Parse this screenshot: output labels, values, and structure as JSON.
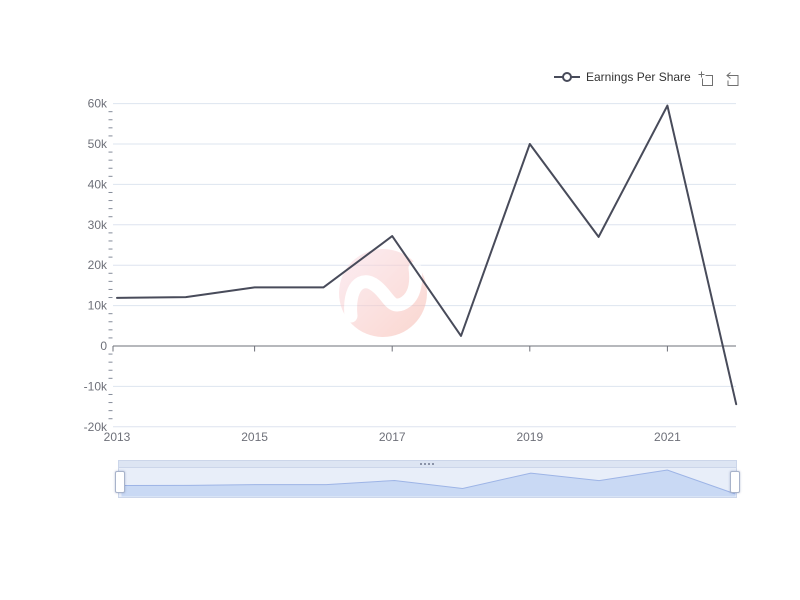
{
  "legend": {
    "label": "Earnings Per Share"
  },
  "icons": {
    "legend_marker": "line-with-circle-marker",
    "toolbox_zoom": "box-zoom-icon",
    "toolbox_restore": "restore-arrow-icon",
    "datazoom_move": "drag-dots"
  },
  "colors": {
    "series_line": "#484b5a",
    "grid_line": "#dde4ef",
    "axis_line": "#6E7079",
    "axis_label": "#6E7079",
    "minor_tick": "#848b99",
    "legend_text": "#333333",
    "toolbox_icon": "#707070",
    "watermark_light": "#fadfe9",
    "watermark_dark": "#f7b7aa",
    "dz_bg": "#e8eef9",
    "dz_fill": "#c9d9f4",
    "dz_line": "#9db4e6",
    "dz_border": "#ccd6ea",
    "dz_move_bg": "#dde5f3",
    "dz_dots": "#8a93a8",
    "dz_handle_border": "#a8b3ca"
  },
  "chart_data": {
    "type": "line",
    "title": "",
    "xlabel": "",
    "ylabel": "",
    "x": [
      2013,
      2014,
      2015,
      2016,
      2017,
      2018,
      2019,
      2020,
      2021,
      2022
    ],
    "x_tick_labels": [
      "2013",
      "2015",
      "2017",
      "2019",
      "2021"
    ],
    "series": [
      {
        "name": "Earnings Per Share",
        "values": [
          11900,
          12100,
          14500,
          14500,
          27200,
          2500,
          50000,
          27000,
          59500,
          -14400
        ]
      }
    ],
    "ylim": [
      -20000,
      60000
    ],
    "y_tick_interval": 10000,
    "y_tick_labels": [
      "60k",
      "50k",
      "40k",
      "30k",
      "20k",
      "10k",
      "0",
      "-10k",
      "-20k"
    ],
    "grid": true,
    "legend_position": "top-right",
    "x_axis_on_zero": true,
    "datazoom_slider": true
  }
}
